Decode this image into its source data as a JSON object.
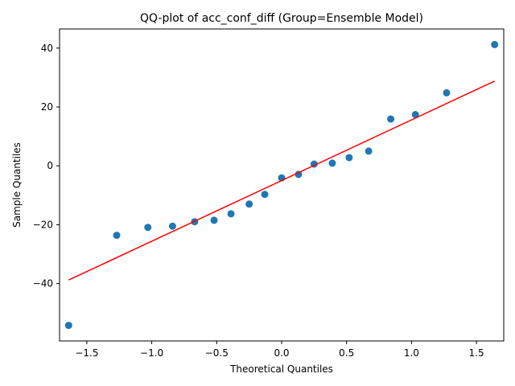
{
  "chart_data": {
    "type": "scatter",
    "title": "QQ-plot of acc_conf_diff (Group=Ensemble Model)",
    "xlabel": "Theoretical Quantiles",
    "ylabel": "Sample Quantiles",
    "xlim": [
      -1.71,
      1.71
    ],
    "ylim": [
      -59.5,
      46.5
    ],
    "xticks": [
      -1.5,
      -1.0,
      -0.5,
      0.0,
      0.5,
      1.0,
      1.5
    ],
    "xtick_labels": [
      "−1.5",
      "−1.0",
      "−0.5",
      "0.0",
      "0.5",
      "1.0",
      "1.5"
    ],
    "yticks": [
      -40,
      -20,
      0,
      20,
      40
    ],
    "ytick_labels": [
      "−40",
      "−20",
      "0",
      "20",
      "40"
    ],
    "grid": false,
    "point_color": "#1f77b4",
    "line_color": "#ff0000",
    "points": [
      {
        "x": -1.64,
        "y": -54.2
      },
      {
        "x": -1.27,
        "y": -23.6
      },
      {
        "x": -1.03,
        "y": -20.9
      },
      {
        "x": -0.84,
        "y": -20.5
      },
      {
        "x": -0.67,
        "y": -19.0
      },
      {
        "x": -0.52,
        "y": -18.5
      },
      {
        "x": -0.39,
        "y": -16.3
      },
      {
        "x": -0.25,
        "y": -13.0
      },
      {
        "x": -0.13,
        "y": -9.7
      },
      {
        "x": 0.0,
        "y": -4.1
      },
      {
        "x": 0.13,
        "y": -2.9
      },
      {
        "x": 0.25,
        "y": 0.6
      },
      {
        "x": 0.39,
        "y": 0.9
      },
      {
        "x": 0.52,
        "y": 2.8
      },
      {
        "x": 0.67,
        "y": 5.0
      },
      {
        "x": 0.84,
        "y": 15.9
      },
      {
        "x": 1.03,
        "y": 17.4
      },
      {
        "x": 1.27,
        "y": 24.8
      },
      {
        "x": 1.64,
        "y": 41.2
      }
    ],
    "reference_line": {
      "x": [
        -1.64,
        1.64
      ],
      "y": [
        -38.8,
        28.8
      ]
    }
  }
}
